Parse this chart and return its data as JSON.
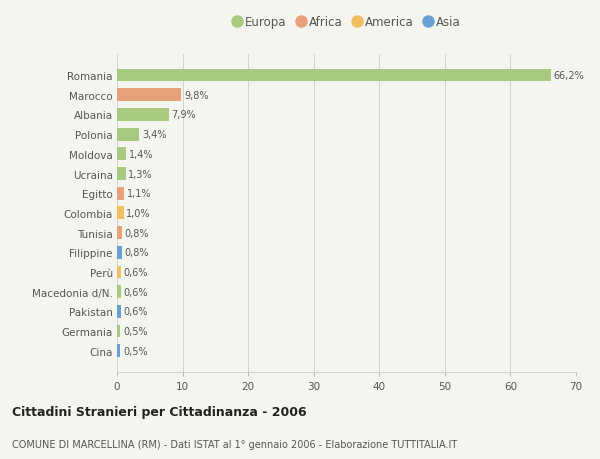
{
  "countries": [
    "Romania",
    "Marocco",
    "Albania",
    "Polonia",
    "Moldova",
    "Ucraina",
    "Egitto",
    "Colombia",
    "Tunisia",
    "Filippine",
    "Perù",
    "Macedonia d/N.",
    "Pakistan",
    "Germania",
    "Cina"
  ],
  "values": [
    66.2,
    9.8,
    7.9,
    3.4,
    1.4,
    1.3,
    1.1,
    1.0,
    0.8,
    0.8,
    0.6,
    0.6,
    0.6,
    0.5,
    0.5
  ],
  "labels": [
    "66,2%",
    "9,8%",
    "7,9%",
    "3,4%",
    "1,4%",
    "1,3%",
    "1,1%",
    "1,0%",
    "0,8%",
    "0,8%",
    "0,6%",
    "0,6%",
    "0,6%",
    "0,5%",
    "0,5%"
  ],
  "colors": [
    "#a8c97f",
    "#e8a07a",
    "#a8c97f",
    "#a8c97f",
    "#a8c97f",
    "#a8c97f",
    "#e8a07a",
    "#f0c060",
    "#e8a07a",
    "#6b9fd4",
    "#f0c060",
    "#a8c97f",
    "#6b9fd4",
    "#a8c97f",
    "#6b9fd4"
  ],
  "legend": [
    {
      "label": "Europa",
      "color": "#a8c97f"
    },
    {
      "label": "Africa",
      "color": "#e8a07a"
    },
    {
      "label": "America",
      "color": "#f0c060"
    },
    {
      "label": "Asia",
      "color": "#6b9fd4"
    }
  ],
  "xlim": [
    0,
    70
  ],
  "xticks": [
    0,
    10,
    20,
    30,
    40,
    50,
    60,
    70
  ],
  "title": "Cittadini Stranieri per Cittadinanza - 2006",
  "subtitle": "COMUNE DI MARCELLINA (RM) - Dati ISTAT al 1° gennaio 2006 - Elaborazione TUTTITALIA.IT",
  "bg_color": "#f5f5f0",
  "bar_height": 0.65
}
